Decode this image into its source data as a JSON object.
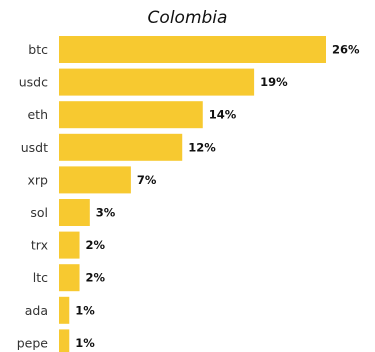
{
  "chart_data": {
    "type": "bar",
    "orientation": "horizontal",
    "title": "Colombia",
    "categories": [
      "btc",
      "usdc",
      "eth",
      "usdt",
      "xrp",
      "sol",
      "trx",
      "ltc",
      "ada",
      "pepe"
    ],
    "values": [
      26,
      19,
      14,
      12,
      7,
      3,
      2,
      2,
      1,
      1
    ],
    "value_labels": [
      "26%",
      "19%",
      "14%",
      "12%",
      "7%",
      "3%",
      "2%",
      "2%",
      "1%",
      "1%"
    ],
    "xlim": [
      0,
      26
    ],
    "grid": false,
    "legend": "none",
    "colors": {
      "bar": "#F7C930"
    }
  }
}
